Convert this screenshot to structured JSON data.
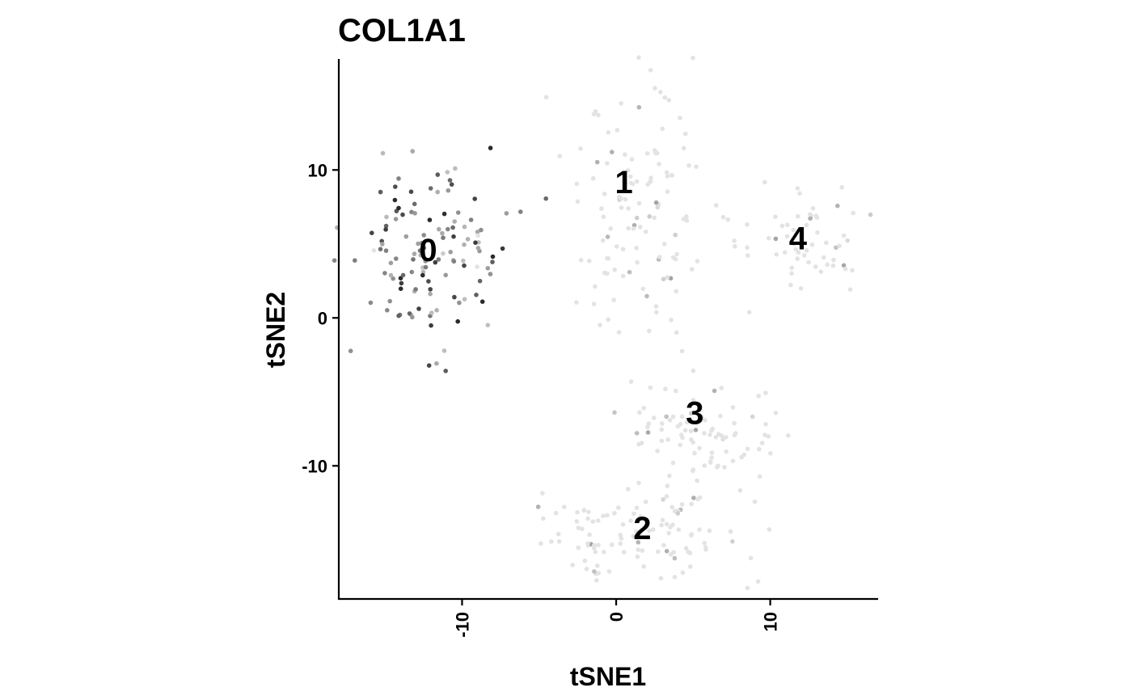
{
  "chart_data": {
    "type": "scatter",
    "title": "COL1A1",
    "xlabel": "tSNE1",
    "ylabel": "tSNE2",
    "xlim": [
      -18,
      17
    ],
    "ylim": [
      -19,
      17.5
    ],
    "x_ticks": [
      -10,
      0,
      10
    ],
    "y_ticks": [
      -10,
      0,
      10
    ],
    "x_tick_labels": [
      "-10",
      "0",
      "10"
    ],
    "y_tick_labels": [
      "-10",
      "0",
      "10"
    ],
    "grid": false,
    "legend": "none",
    "color_low": "#e3e3e3",
    "color_high": "#2b2b2b",
    "cluster_labels": [
      {
        "label": "0",
        "x": -12.2,
        "y": 4.6
      },
      {
        "label": "1",
        "x": 0.5,
        "y": 9.2
      },
      {
        "label": "2",
        "x": 1.7,
        "y": -14.2
      },
      {
        "label": "3",
        "x": 5.1,
        "y": -6.4
      },
      {
        "label": "4",
        "x": 11.8,
        "y": 5.4
      }
    ],
    "clusters": [
      {
        "label": "0",
        "cx": -12.2,
        "cy": 4.2,
        "sx": 2.6,
        "sy": 3.0,
        "n": 130,
        "expr_mean": 0.55
      },
      {
        "label": "1",
        "cx": 1.2,
        "cy": 7.5,
        "sx": 2.2,
        "sy": 4.4,
        "n": 120,
        "expr_mean": 0.08
      },
      {
        "label": "2",
        "cx": 1.6,
        "cy": -14.6,
        "sx": 3.2,
        "sy": 1.6,
        "n": 110,
        "expr_mean": 0.04
      },
      {
        "label": "3",
        "cx": 5.8,
        "cy": -7.8,
        "sx": 2.4,
        "sy": 2.4,
        "n": 95,
        "expr_mean": 0.04
      },
      {
        "label": "4",
        "cx": 12.3,
        "cy": 5.0,
        "sx": 1.9,
        "sy": 1.6,
        "n": 60,
        "expr_mean": 0.03
      }
    ]
  }
}
